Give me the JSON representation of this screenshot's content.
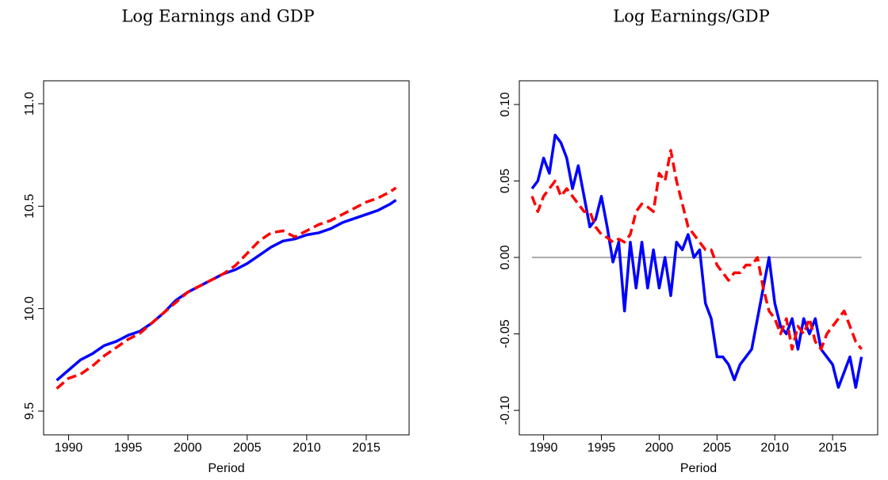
{
  "chart_data": [
    {
      "type": "line",
      "title": "Log Earnings and GDP",
      "xlabel": "Period",
      "x": [
        1989,
        1990,
        1991,
        1992,
        1993,
        1994,
        1995,
        1996,
        1997,
        1998,
        1999,
        2000,
        2001,
        2002,
        2003,
        2004,
        2005,
        2006,
        2007,
        2008,
        2009,
        2010,
        2011,
        2012,
        2013,
        2014,
        2015,
        2016,
        2017,
        2017.5
      ],
      "series": [
        {
          "color": "#0000ff",
          "line_style": "solid",
          "values": [
            9.65,
            9.7,
            9.75,
            9.78,
            9.82,
            9.84,
            9.87,
            9.89,
            9.93,
            9.98,
            10.04,
            10.08,
            10.11,
            10.14,
            10.17,
            10.19,
            10.22,
            10.26,
            10.3,
            10.33,
            10.34,
            10.36,
            10.37,
            10.39,
            10.42,
            10.44,
            10.46,
            10.48,
            10.51,
            10.53
          ]
        },
        {
          "color": "#ff0000",
          "line_style": "dashed",
          "values": [
            9.61,
            9.66,
            9.68,
            9.72,
            9.77,
            9.81,
            9.85,
            9.88,
            9.93,
            9.98,
            10.03,
            10.08,
            10.11,
            10.14,
            10.17,
            10.21,
            10.27,
            10.33,
            10.37,
            10.38,
            10.35,
            10.38,
            10.41,
            10.43,
            10.46,
            10.49,
            10.52,
            10.54,
            10.57,
            10.59
          ]
        }
      ],
      "xlim": [
        1987.9,
        2018.6
      ],
      "xticks": [
        1990,
        1995,
        2000,
        2005,
        2010,
        2015
      ],
      "ylim": [
        9.384,
        11.112
      ],
      "yticks": [
        9.5,
        {
          "value": 10,
          "label": "10.0"
        },
        10.5,
        {
          "value": 11,
          "label": "11.0"
        }
      ]
    },
    {
      "type": "line",
      "title": "Log Earnings/GDP",
      "xlabel": "Period",
      "x": [
        1989,
        1989.5,
        1990,
        1990.5,
        1991,
        1991.5,
        1992,
        1992.5,
        1993,
        1993.5,
        1994,
        1994.5,
        1995,
        1995.5,
        1996,
        1996.5,
        1997,
        1997.5,
        1998,
        1998.5,
        1999,
        1999.5,
        2000,
        2000.5,
        2001,
        2001.5,
        2002,
        2002.5,
        2003,
        2003.5,
        2004,
        2004.5,
        2005,
        2005.5,
        2006,
        2006.5,
        2007,
        2007.5,
        2008,
        2008.5,
        2009,
        2009.5,
        2010,
        2010.5,
        2011,
        2011.5,
        2012,
        2012.5,
        2013,
        2013.5,
        2014,
        2014.5,
        2015,
        2015.5,
        2016,
        2016.5,
        2017,
        2017.5
      ],
      "series": [
        {
          "color": "#0000ff",
          "line_style": "solid",
          "values": [
            0.045,
            0.05,
            0.065,
            0.055,
            0.08,
            0.075,
            0.065,
            0.045,
            0.06,
            0.04,
            0.02,
            0.025,
            0.04,
            0.02,
            -0.003,
            0.01,
            -0.035,
            0.01,
            -0.02,
            0.01,
            -0.02,
            0.005,
            -0.02,
            0.0,
            -0.025,
            0.01,
            0.005,
            0.015,
            0.0,
            0.005,
            -0.03,
            -0.04,
            -0.065,
            -0.065,
            -0.07,
            -0.08,
            -0.07,
            -0.065,
            -0.06,
            -0.04,
            -0.02,
            0.0,
            -0.03,
            -0.045,
            -0.05,
            -0.04,
            -0.06,
            -0.04,
            -0.05,
            -0.04,
            -0.06,
            -0.065,
            -0.07,
            -0.085,
            -0.075,
            -0.065,
            -0.085,
            -0.065
          ]
        },
        {
          "color": "#ff0000",
          "line_style": "dashed",
          "values": [
            0.04,
            0.03,
            0.04,
            0.045,
            0.05,
            0.04,
            0.045,
            0.04,
            0.035,
            0.03,
            0.03,
            0.02,
            0.015,
            0.013,
            0.01,
            0.012,
            0.01,
            0.015,
            0.03,
            0.035,
            0.033,
            0.03,
            0.055,
            0.05,
            0.07,
            0.05,
            0.035,
            0.02,
            0.015,
            0.01,
            0.005,
            0.005,
            -0.005,
            -0.01,
            -0.015,
            -0.01,
            -0.01,
            -0.005,
            -0.005,
            0.0,
            -0.02,
            -0.035,
            -0.04,
            -0.05,
            -0.04,
            -0.06,
            -0.045,
            -0.05,
            -0.04,
            -0.055,
            -0.06,
            -0.05,
            -0.045,
            -0.04,
            -0.035,
            -0.045,
            -0.055,
            -0.06
          ]
        }
      ],
      "hline": 0,
      "xlim": [
        1987.9,
        2018.9
      ],
      "xticks": [
        1990,
        1995,
        2000,
        2005,
        2010,
        2015
      ],
      "ylim": [
        -0.116,
        0.1155
      ],
      "yticks": [
        {
          "value": -0.1,
          "label": "-0.10"
        },
        -0.05,
        {
          "value": 0,
          "label": "0.00"
        },
        0.05,
        {
          "value": 0.1,
          "label": "0.10"
        }
      ]
    }
  ]
}
